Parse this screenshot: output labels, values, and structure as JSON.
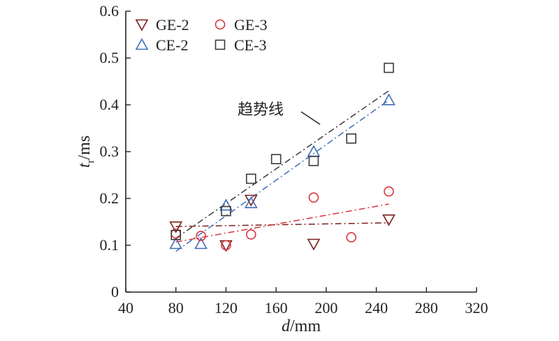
{
  "chart_data": {
    "type": "scatter",
    "xlabel_italic": "d",
    "xlabel_rest": "/mm",
    "ylabel_italic": "t",
    "ylabel_sub": "r",
    "ylabel_rest": "/ms",
    "xlim": [
      40,
      320
    ],
    "ylim": [
      0,
      0.6
    ],
    "xticks": [
      40,
      80,
      120,
      160,
      200,
      240,
      280,
      320
    ],
    "xtick_labels": [
      "40",
      "80",
      "120",
      "160",
      "200",
      "240",
      "280",
      "320"
    ],
    "yticks": [
      0,
      0.1,
      0.2,
      0.3,
      0.4,
      0.5,
      0.6
    ],
    "ytick_labels": [
      "0",
      "0.1",
      "0.2",
      "0.3",
      "0.4",
      "0.5",
      "0.6"
    ],
    "grid": false,
    "legend_position": "top-left",
    "annotation": "趋势线",
    "series": [
      {
        "name": "GE-2",
        "marker": "triangle-down",
        "color": "#7a1f1f",
        "points": [
          [
            80,
            0.14
          ],
          [
            120,
            0.1
          ],
          [
            140,
            0.197
          ],
          [
            190,
            0.103
          ],
          [
            250,
            0.155
          ]
        ],
        "trend": [
          [
            80,
            0.14
          ],
          [
            250,
            0.148
          ]
        ]
      },
      {
        "name": "CE-2",
        "marker": "triangle-up",
        "color": "#3f6fb5",
        "points": [
          [
            80,
            0.103
          ],
          [
            100,
            0.103
          ],
          [
            120,
            0.185
          ],
          [
            140,
            0.19
          ],
          [
            190,
            0.3
          ],
          [
            250,
            0.41
          ]
        ],
        "trend": [
          [
            80,
            0.087
          ],
          [
            250,
            0.41
          ]
        ]
      },
      {
        "name": "GE-3",
        "marker": "circle",
        "color": "#d9343a",
        "points": [
          [
            80,
            0.125
          ],
          [
            100,
            0.12
          ],
          [
            120,
            0.1
          ],
          [
            140,
            0.123
          ],
          [
            190,
            0.202
          ],
          [
            220,
            0.117
          ],
          [
            250,
            0.215
          ]
        ],
        "trend": [
          [
            80,
            0.107
          ],
          [
            250,
            0.188
          ]
        ]
      },
      {
        "name": "CE-3",
        "marker": "square",
        "color": "#3a3a3a",
        "points": [
          [
            80,
            0.122
          ],
          [
            120,
            0.173
          ],
          [
            140,
            0.242
          ],
          [
            160,
            0.284
          ],
          [
            190,
            0.28
          ],
          [
            220,
            0.328
          ],
          [
            250,
            0.479
          ]
        ],
        "trend": [
          [
            80,
            0.115
          ],
          [
            250,
            0.43
          ]
        ]
      }
    ]
  }
}
